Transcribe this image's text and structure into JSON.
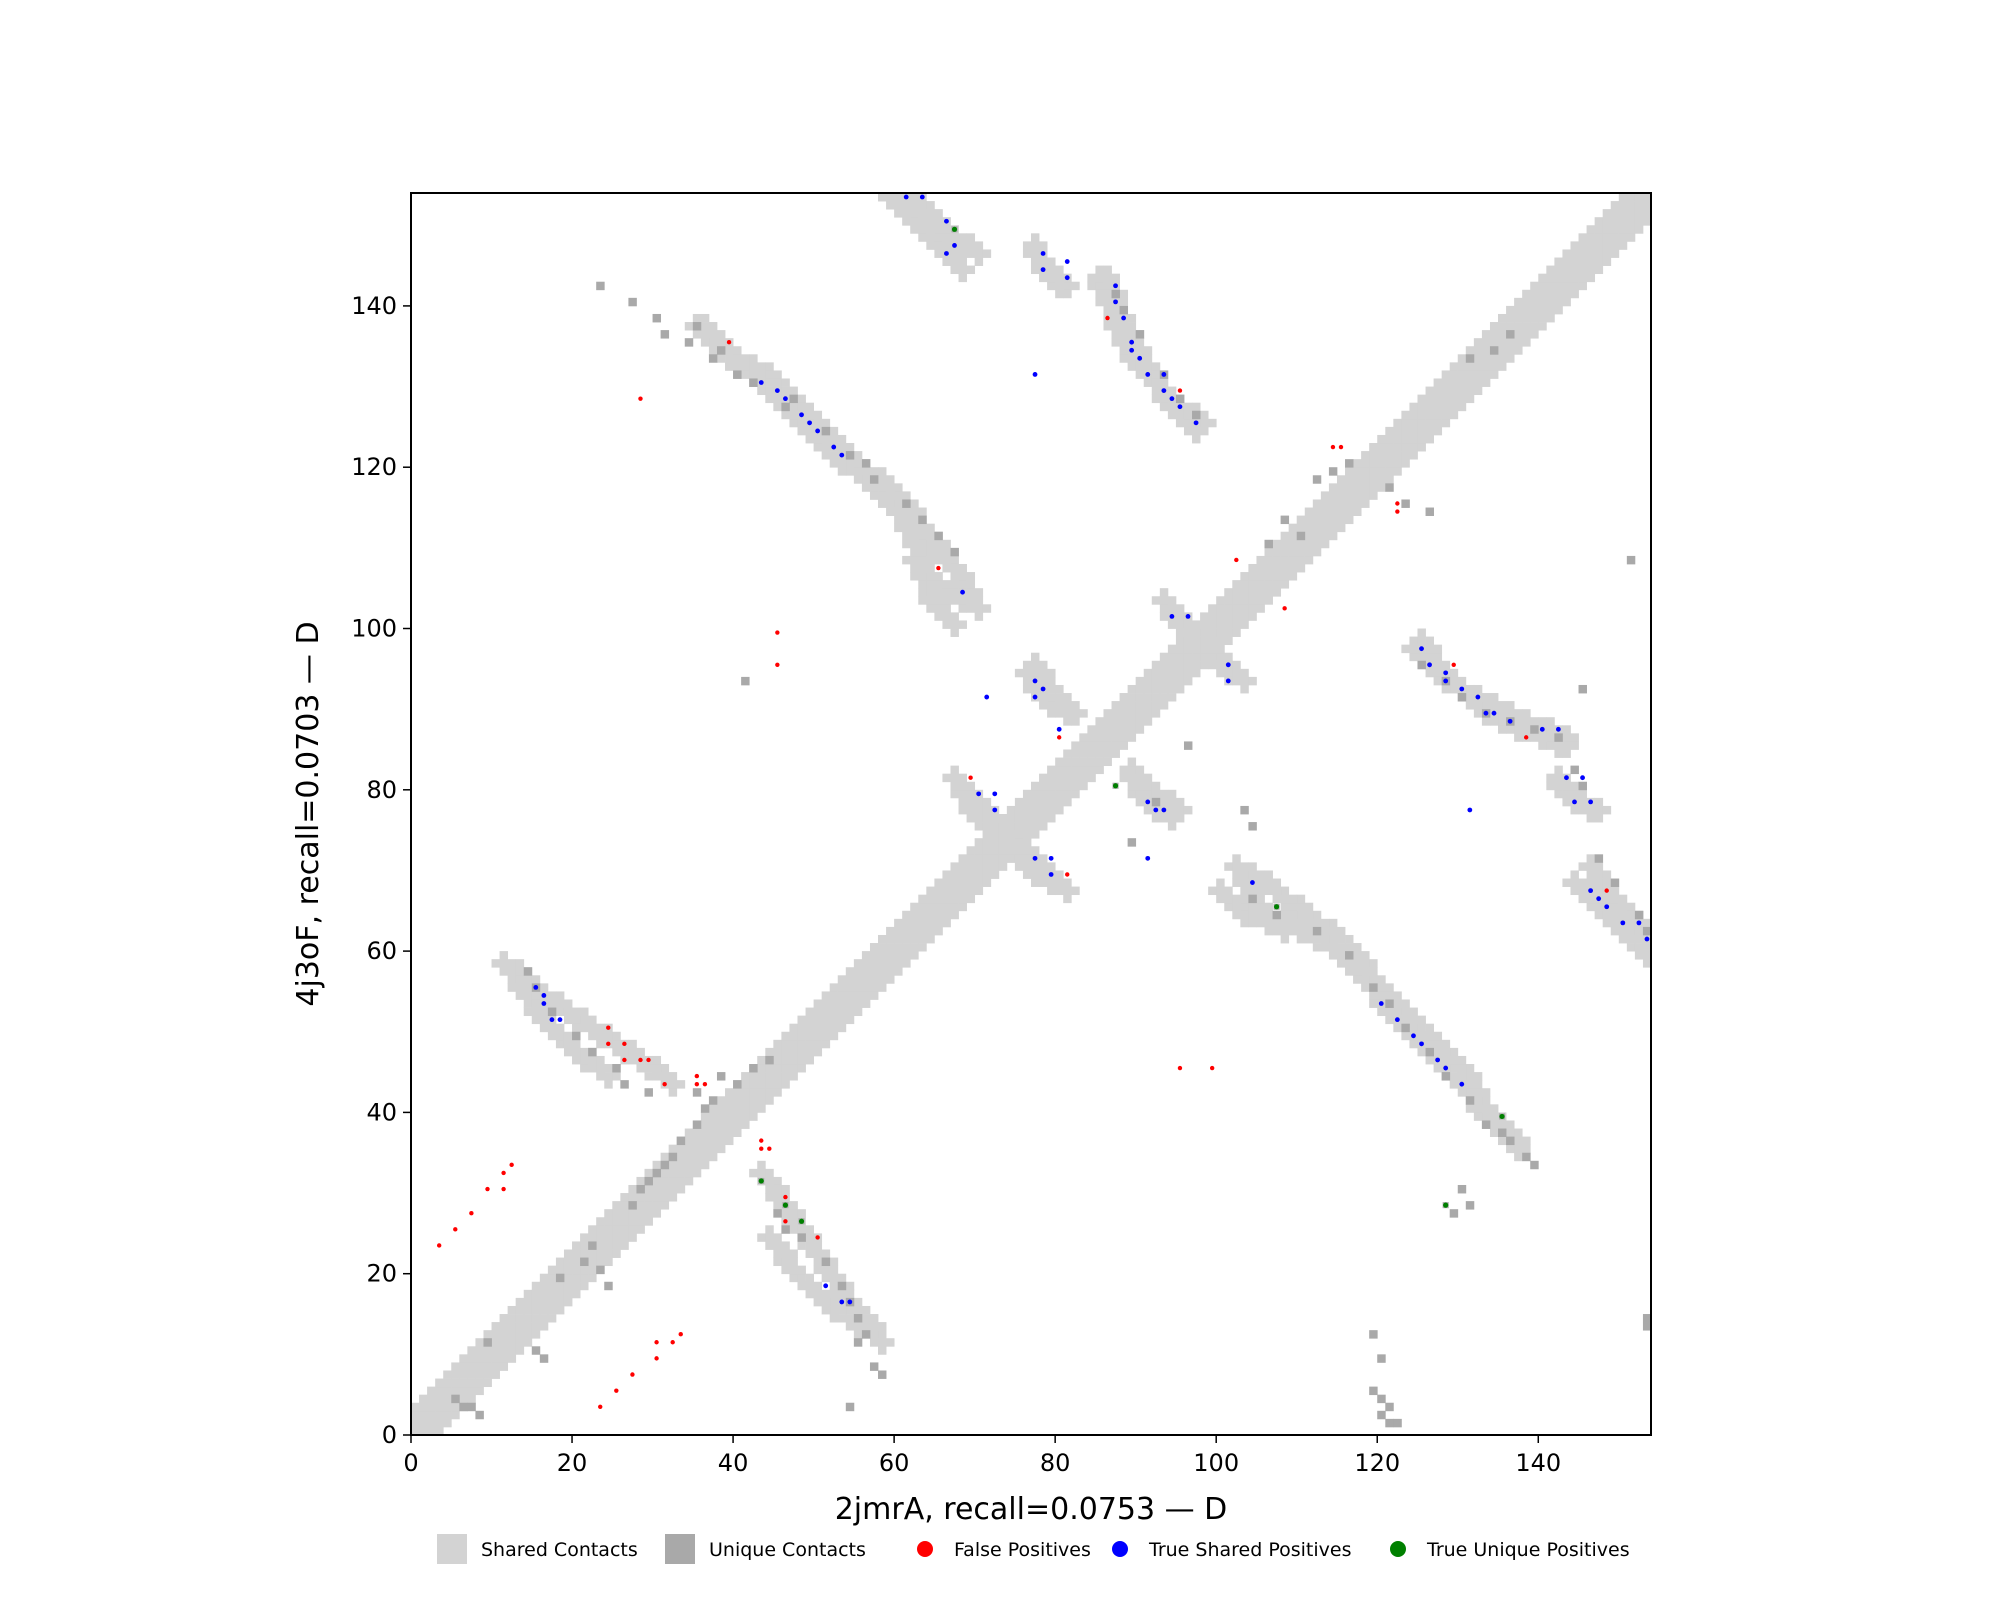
{
  "chart_data": {
    "type": "heatmap",
    "title": "",
    "xlabel": "2jmrA, recall=0.0753 — D",
    "ylabel": "4j3oF, recall=0.0703 — D",
    "xlim": [
      0,
      154
    ],
    "ylim": [
      0,
      154
    ],
    "xticks": [
      0,
      20,
      40,
      60,
      80,
      100,
      120,
      140
    ],
    "yticks": [
      0,
      20,
      40,
      60,
      80,
      100,
      120,
      140
    ],
    "grid": false,
    "legend_position": "bottom",
    "colors": {
      "shared": "#d3d3d3",
      "unique": "#a9a9a9",
      "false_pos": "#ff0000",
      "true_shared": "#0000ff",
      "true_unique": "#008000"
    },
    "legend": [
      {
        "label": "Shared Contacts",
        "kind": "square",
        "color": "#d3d3d3"
      },
      {
        "label": "Unique Contacts",
        "kind": "square",
        "color": "#a9a9a9"
      },
      {
        "label": "False Positives",
        "kind": "dot",
        "color": "#ff0000"
      },
      {
        "label": "True Shared Positives",
        "kind": "dot",
        "color": "#0000ff"
      },
      {
        "label": "True Unique Positives",
        "kind": "dot",
        "color": "#008000"
      }
    ],
    "diagonal_band": {
      "from": 0,
      "to": 153,
      "half_width": 3
    },
    "shared_segments": [
      [
        [
          59,
          153
        ],
        [
          62,
          150
        ],
        [
          65,
          147
        ],
        [
          68,
          144
        ]
      ],
      [
        [
          77,
          147
        ],
        [
          78,
          144
        ],
        [
          80,
          142
        ]
      ],
      [
        [
          85,
          143
        ],
        [
          87,
          138
        ],
        [
          89,
          133
        ],
        [
          92,
          130
        ],
        [
          95,
          127
        ],
        [
          98,
          125
        ]
      ],
      [
        [
          36,
          137
        ],
        [
          40,
          133
        ],
        [
          45,
          130
        ],
        [
          50,
          125
        ],
        [
          55,
          120
        ],
        [
          60,
          116
        ],
        [
          64,
          111
        ],
        [
          66,
          108
        ],
        [
          69,
          104
        ]
      ],
      [
        [
          11,
          58
        ],
        [
          14,
          54
        ],
        [
          16,
          51
        ],
        [
          19,
          48
        ],
        [
          24,
          44
        ]
      ],
      [
        [
          43,
          32
        ],
        [
          46,
          28
        ],
        [
          48,
          25
        ],
        [
          50,
          22
        ],
        [
          52,
          19
        ],
        [
          54,
          16
        ],
        [
          57,
          13
        ]
      ],
      [
        [
          100,
          67
        ],
        [
          103,
          64
        ],
        [
          108,
          63
        ],
        [
          113,
          61
        ],
        [
          118,
          56
        ],
        [
          121,
          52
        ],
        [
          125,
          48
        ],
        [
          130,
          43
        ],
        [
          134,
          38
        ],
        [
          137,
          35
        ]
      ],
      [
        [
          124,
          97
        ],
        [
          127,
          94
        ],
        [
          131,
          91
        ],
        [
          135,
          89
        ],
        [
          139,
          87
        ],
        [
          143,
          86
        ]
      ],
      [
        [
          146,
          70
        ],
        [
          148,
          67
        ],
        [
          151,
          64
        ],
        [
          153,
          60
        ]
      ],
      [
        [
          93,
          103
        ],
        [
          98,
          98
        ],
        [
          101,
          94
        ]
      ],
      [
        [
          68,
          79
        ],
        [
          70,
          76
        ],
        [
          73,
          74
        ]
      ],
      [
        [
          76,
          94
        ],
        [
          78,
          91
        ],
        [
          81,
          89
        ]
      ],
      [
        [
          75,
          72
        ],
        [
          78,
          70
        ],
        [
          81,
          67
        ]
      ],
      [
        [
          89,
          82
        ],
        [
          92,
          79
        ],
        [
          95,
          77
        ]
      ],
      [
        [
          142,
          81
        ],
        [
          144,
          78
        ]
      ],
      [
        [
          62,
          108
        ],
        [
          66,
          104
        ],
        [
          70,
          102
        ]
      ]
    ],
    "unique_cells": [
      [
        23,
        142
      ],
      [
        27,
        140
      ],
      [
        30,
        138
      ],
      [
        31,
        136
      ],
      [
        34,
        135
      ],
      [
        35,
        137
      ],
      [
        37,
        133
      ],
      [
        38,
        134
      ],
      [
        40,
        131
      ],
      [
        42,
        130
      ],
      [
        46,
        127
      ],
      [
        47,
        128
      ],
      [
        51,
        124
      ],
      [
        54,
        121
      ],
      [
        56,
        120
      ],
      [
        57,
        118
      ],
      [
        61,
        115
      ],
      [
        63,
        113
      ],
      [
        65,
        111
      ],
      [
        67,
        109
      ],
      [
        87,
        141
      ],
      [
        88,
        139
      ],
      [
        90,
        136
      ],
      [
        93,
        131
      ],
      [
        95,
        128
      ],
      [
        97,
        126
      ],
      [
        14,
        57
      ],
      [
        15,
        55
      ],
      [
        17,
        52
      ],
      [
        20,
        49
      ],
      [
        22,
        47
      ],
      [
        25,
        45
      ],
      [
        26,
        43
      ],
      [
        29,
        42
      ],
      [
        45,
        27
      ],
      [
        46,
        25
      ],
      [
        48,
        24
      ],
      [
        51,
        21
      ],
      [
        53,
        18
      ],
      [
        54,
        16
      ],
      [
        55,
        14
      ],
      [
        56,
        12
      ],
      [
        55,
        11
      ],
      [
        57,
        8
      ],
      [
        58,
        7
      ],
      [
        54,
        3
      ],
      [
        104,
        66
      ],
      [
        107,
        64
      ],
      [
        112,
        62
      ],
      [
        116,
        59
      ],
      [
        119,
        55
      ],
      [
        121,
        53
      ],
      [
        123,
        50
      ],
      [
        126,
        47
      ],
      [
        128,
        44
      ],
      [
        131,
        41
      ],
      [
        133,
        38
      ],
      [
        136,
        36
      ],
      [
        138,
        34
      ],
      [
        139,
        33
      ],
      [
        130,
        30
      ],
      [
        131,
        28
      ],
      [
        129,
        27
      ],
      [
        135,
        37
      ],
      [
        125,
        95
      ],
      [
        128,
        93
      ],
      [
        130,
        91
      ],
      [
        133,
        89
      ],
      [
        136,
        88
      ],
      [
        139,
        87
      ],
      [
        142,
        86
      ],
      [
        144,
        82
      ],
      [
        145,
        80
      ],
      [
        147,
        71
      ],
      [
        149,
        68
      ],
      [
        152,
        64
      ],
      [
        153,
        62
      ],
      [
        145,
        92
      ],
      [
        151,
        108
      ],
      [
        153,
        14
      ],
      [
        153,
        13
      ],
      [
        119,
        12
      ],
      [
        120,
        9
      ],
      [
        119,
        5
      ],
      [
        120,
        4
      ],
      [
        121,
        3
      ],
      [
        121,
        1
      ],
      [
        120,
        2
      ],
      [
        122,
        1
      ],
      [
        5,
        4
      ],
      [
        6,
        3
      ],
      [
        7,
        3
      ],
      [
        8,
        2
      ],
      [
        9,
        11
      ],
      [
        15,
        10
      ],
      [
        16,
        9
      ],
      [
        18,
        19
      ],
      [
        21,
        21
      ],
      [
        22,
        23
      ],
      [
        23,
        20
      ],
      [
        24,
        18
      ],
      [
        27,
        28
      ],
      [
        28,
        30
      ],
      [
        29,
        31
      ],
      [
        30,
        32
      ],
      [
        31,
        33
      ],
      [
        32,
        34
      ],
      [
        33,
        36
      ],
      [
        35,
        38
      ],
      [
        36,
        40
      ],
      [
        35,
        42
      ],
      [
        37,
        41
      ],
      [
        38,
        44
      ],
      [
        40,
        43
      ],
      [
        42,
        45
      ],
      [
        44,
        46
      ],
      [
        89,
        73
      ],
      [
        92,
        78
      ],
      [
        96,
        85
      ],
      [
        103,
        77
      ],
      [
        104,
        75
      ],
      [
        106,
        110
      ],
      [
        108,
        113
      ],
      [
        110,
        111
      ],
      [
        112,
        118
      ],
      [
        114,
        119
      ],
      [
        116,
        120
      ],
      [
        121,
        117
      ],
      [
        123,
        115
      ],
      [
        126,
        114
      ],
      [
        131,
        133
      ],
      [
        134,
        134
      ],
      [
        136,
        136
      ],
      [
        41,
        93
      ]
    ],
    "false_positives": [
      [
        3,
        23
      ],
      [
        5,
        25
      ],
      [
        7,
        27
      ],
      [
        9,
        30
      ],
      [
        11,
        30
      ],
      [
        11,
        32
      ],
      [
        12,
        33
      ],
      [
        23,
        3
      ],
      [
        25,
        5
      ],
      [
        27,
        7
      ],
      [
        30,
        9
      ],
      [
        30,
        11
      ],
      [
        32,
        11
      ],
      [
        33,
        12
      ],
      [
        24,
        48
      ],
      [
        24,
        50
      ],
      [
        26,
        46
      ],
      [
        26,
        48
      ],
      [
        28,
        46
      ],
      [
        29,
        46
      ],
      [
        31,
        43
      ],
      [
        35,
        43
      ],
      [
        35,
        44
      ],
      [
        36,
        43
      ],
      [
        43,
        36
      ],
      [
        43,
        35
      ],
      [
        44,
        35
      ],
      [
        46,
        29
      ],
      [
        46,
        28
      ],
      [
        46,
        26
      ],
      [
        48,
        26
      ],
      [
        50,
        24
      ],
      [
        28,
        128
      ],
      [
        39,
        135
      ],
      [
        45,
        95
      ],
      [
        45,
        99
      ],
      [
        65,
        107
      ],
      [
        69,
        81
      ],
      [
        80,
        86
      ],
      [
        81,
        69
      ],
      [
        86,
        138
      ],
      [
        95,
        129
      ],
      [
        95,
        45
      ],
      [
        99,
        45
      ],
      [
        102,
        108
      ],
      [
        108,
        102
      ],
      [
        114,
        122
      ],
      [
        115,
        122
      ],
      [
        122,
        115
      ],
      [
        122,
        114
      ],
      [
        129,
        95
      ],
      [
        138,
        86
      ],
      [
        148,
        67
      ]
    ],
    "true_shared": [
      [
        61,
        153
      ],
      [
        63,
        153
      ],
      [
        66,
        150
      ],
      [
        67,
        147
      ],
      [
        66,
        146
      ],
      [
        78,
        146
      ],
      [
        78,
        144
      ],
      [
        81,
        145
      ],
      [
        81,
        143
      ],
      [
        87,
        142
      ],
      [
        87,
        140
      ],
      [
        88,
        138
      ],
      [
        89,
        135
      ],
      [
        89,
        134
      ],
      [
        90,
        133
      ],
      [
        91,
        131
      ],
      [
        93,
        131
      ],
      [
        93,
        129
      ],
      [
        94,
        128
      ],
      [
        95,
        127
      ],
      [
        97,
        125
      ],
      [
        43,
        130
      ],
      [
        45,
        129
      ],
      [
        46,
        128
      ],
      [
        48,
        126
      ],
      [
        49,
        125
      ],
      [
        50,
        124
      ],
      [
        52,
        122
      ],
      [
        53,
        121
      ],
      [
        68,
        104
      ],
      [
        77,
        131
      ],
      [
        16,
        54
      ],
      [
        16,
        53
      ],
      [
        17,
        51
      ],
      [
        18,
        51
      ],
      [
        15,
        55
      ],
      [
        51,
        18
      ],
      [
        53,
        16
      ],
      [
        54,
        16
      ],
      [
        104,
        68
      ],
      [
        120,
        53
      ],
      [
        122,
        51
      ],
      [
        124,
        49
      ],
      [
        125,
        48
      ],
      [
        127,
        46
      ],
      [
        128,
        45
      ],
      [
        130,
        43
      ],
      [
        125,
        97
      ],
      [
        126,
        95
      ],
      [
        128,
        94
      ],
      [
        128,
        93
      ],
      [
        130,
        92
      ],
      [
        132,
        91
      ],
      [
        133,
        89
      ],
      [
        134,
        89
      ],
      [
        136,
        88
      ],
      [
        140,
        87
      ],
      [
        142,
        87
      ],
      [
        143,
        81
      ],
      [
        144,
        78
      ],
      [
        145,
        81
      ],
      [
        146,
        78
      ],
      [
        131,
        77
      ],
      [
        146,
        67
      ],
      [
        147,
        66
      ],
      [
        148,
        65
      ],
      [
        150,
        63
      ],
      [
        152,
        63
      ],
      [
        153,
        61
      ],
      [
        94,
        101
      ],
      [
        96,
        101
      ],
      [
        101,
        95
      ],
      [
        101,
        93
      ],
      [
        71,
        91
      ],
      [
        77,
        93
      ],
      [
        78,
        92
      ],
      [
        77,
        91
      ],
      [
        70,
        79
      ],
      [
        72,
        79
      ],
      [
        72,
        77
      ],
      [
        77,
        71
      ],
      [
        79,
        71
      ],
      [
        79,
        69
      ],
      [
        80,
        87
      ],
      [
        91,
        78
      ],
      [
        92,
        77
      ],
      [
        93,
        77
      ],
      [
        91,
        71
      ]
    ],
    "true_unique": [
      [
        67,
        149
      ],
      [
        43,
        31
      ],
      [
        46,
        28
      ],
      [
        48,
        26
      ],
      [
        87,
        80
      ],
      [
        107,
        65
      ],
      [
        135,
        39
      ],
      [
        128,
        28
      ]
    ]
  }
}
